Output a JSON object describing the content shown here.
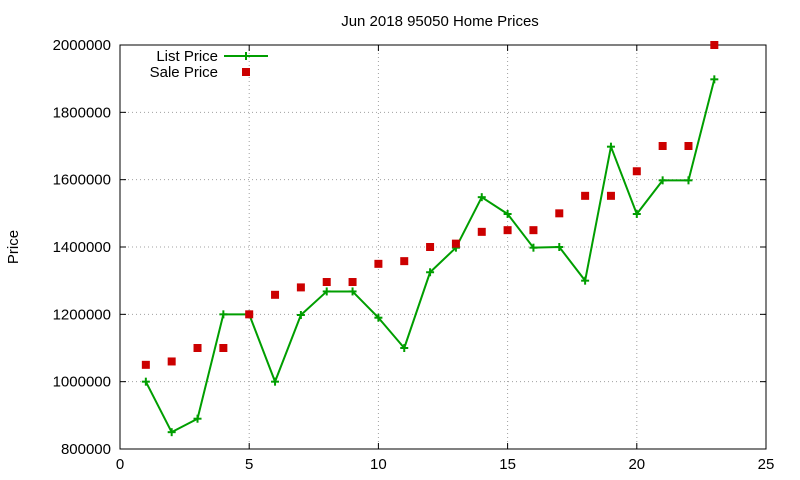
{
  "chart_data": {
    "type": "line",
    "title": "Jun 2018 95050 Home Prices",
    "xlabel": "",
    "ylabel": "Price",
    "xlim": [
      0,
      25
    ],
    "ylim": [
      800000,
      2000000
    ],
    "x_ticks": [
      0,
      5,
      10,
      15,
      20,
      25
    ],
    "y_ticks": [
      800000,
      1000000,
      1200000,
      1400000,
      1600000,
      1800000,
      2000000
    ],
    "grid": true,
    "legend_position": "top-left",
    "series": [
      {
        "name": "List Price",
        "style": "line-with-plus-markers",
        "color": "#009e00",
        "x": [
          1,
          2,
          3,
          4,
          5,
          6,
          7,
          8,
          9,
          10,
          11,
          12,
          13,
          14,
          15,
          16,
          17,
          18,
          19,
          20,
          21,
          22,
          23
        ],
        "values": [
          1000000,
          850000,
          890000,
          1200000,
          1200000,
          1000000,
          1198000,
          1268000,
          1268000,
          1190000,
          1100000,
          1325000,
          1398000,
          1548000,
          1498000,
          1398000,
          1400000,
          1300000,
          1698000,
          1498000,
          1598000,
          1598000,
          1898000
        ]
      },
      {
        "name": "Sale Price",
        "style": "square-markers",
        "color": "#cc0000",
        "x": [
          1,
          2,
          3,
          4,
          5,
          6,
          7,
          8,
          9,
          10,
          11,
          12,
          13,
          14,
          15,
          16,
          17,
          18,
          19,
          20,
          21,
          22,
          23
        ],
        "values": [
          1050000,
          1060000,
          1100000,
          1100000,
          1200000,
          1258000,
          1280000,
          1296000,
          1296000,
          1350000,
          1358000,
          1400000,
          1410000,
          1445000,
          1450000,
          1450000,
          1500000,
          1552000,
          1552000,
          1625000,
          1700000,
          1700000,
          2000000
        ]
      }
    ]
  }
}
